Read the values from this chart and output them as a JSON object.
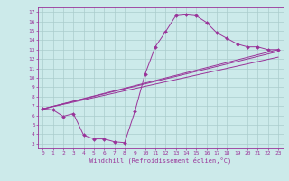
{
  "bg_color": "#cceaea",
  "grid_color": "#aacccc",
  "line_color": "#993399",
  "marker_color": "#993399",
  "xlabel": "Windchill (Refroidissement éolien,°C)",
  "xlim": [
    -0.5,
    23.5
  ],
  "ylim": [
    2.5,
    17.5
  ],
  "xticks": [
    0,
    1,
    2,
    3,
    4,
    5,
    6,
    7,
    8,
    9,
    10,
    11,
    12,
    13,
    14,
    15,
    16,
    17,
    18,
    19,
    20,
    21,
    22,
    23
  ],
  "yticks": [
    3,
    4,
    5,
    6,
    7,
    8,
    9,
    10,
    11,
    12,
    13,
    14,
    15,
    16,
    17
  ],
  "curve1_x": [
    0,
    1,
    2,
    3,
    4,
    5,
    6,
    7,
    8,
    9,
    10,
    11,
    12,
    13,
    14,
    15,
    16,
    17,
    18,
    19,
    20,
    21,
    22,
    23
  ],
  "curve1_y": [
    6.7,
    6.6,
    5.9,
    6.2,
    3.9,
    3.5,
    3.5,
    3.2,
    3.1,
    6.4,
    10.4,
    13.3,
    14.9,
    16.6,
    16.7,
    16.6,
    15.9,
    14.8,
    14.2,
    13.6,
    13.3,
    13.3,
    13.0,
    13.0
  ],
  "curve2_x": [
    0,
    23
  ],
  "curve2_y": [
    6.7,
    12.8
  ],
  "curve3_x": [
    0,
    23
  ],
  "curve3_y": [
    6.7,
    12.2
  ],
  "curve4_x": [
    0,
    23
  ],
  "curve4_y": [
    6.7,
    13.0
  ]
}
